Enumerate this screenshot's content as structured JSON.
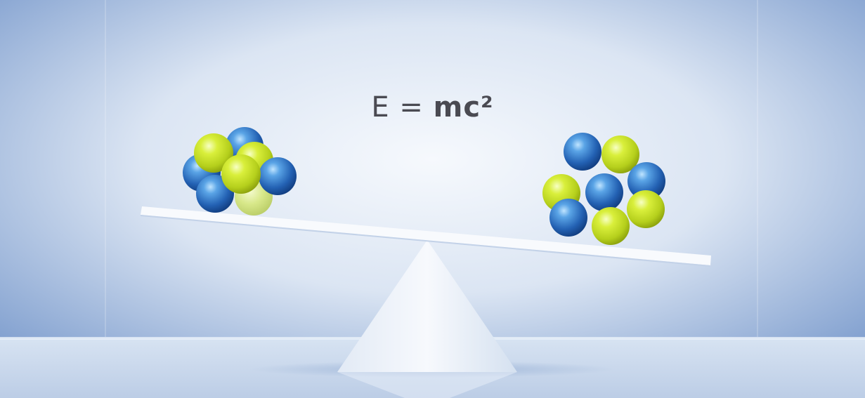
{
  "formula": {
    "lhs": "E = ",
    "rhs": "mc²"
  },
  "colors": {
    "background_light": "#eef3fa",
    "background_edge": "#6f92c8",
    "floor": "#c9d8ec",
    "beam": "#f7f9fd",
    "fulcrum": "#eef3fa",
    "particle_blue": "#2d6fc0",
    "particle_green": "#c8e02c",
    "text": "#4a4a52"
  },
  "left_cluster": {
    "particles": [
      {
        "type": "blue"
      },
      {
        "type": "blue"
      },
      {
        "type": "green"
      },
      {
        "type": "green"
      },
      {
        "type": "blue"
      },
      {
        "type": "green"
      },
      {
        "type": "blue"
      },
      {
        "type": "green"
      }
    ]
  },
  "right_cluster": {
    "particles": [
      {
        "type": "blue"
      },
      {
        "type": "green"
      },
      {
        "type": "green"
      },
      {
        "type": "blue"
      },
      {
        "type": "blue"
      },
      {
        "type": "blue"
      },
      {
        "type": "green"
      },
      {
        "type": "green"
      }
    ]
  }
}
